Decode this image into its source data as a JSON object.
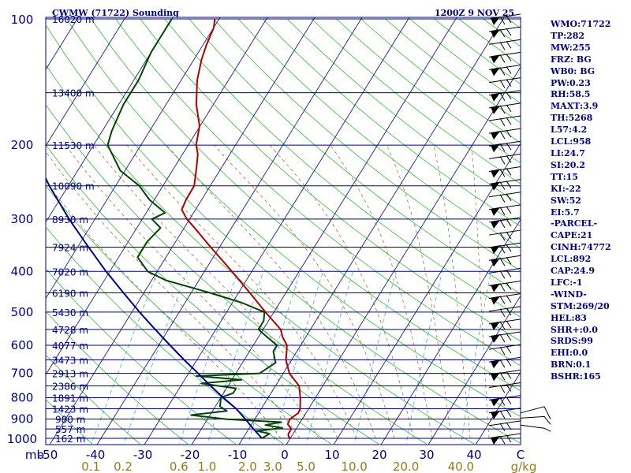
{
  "header": {
    "station": "CWMW (71722) Sounding",
    "time": "1200Z  9 NOV 25"
  },
  "indices": [
    "WMO:71722",
    "TP:282",
    "MW:255",
    "FRZ: BG",
    "WB0: BG",
    "PW:0.23",
    "RH:58.5",
    "MAXT:3.9",
    "TH:5268",
    "L57:4.2",
    "LCL:958",
    "LI:24.7",
    "SI:20.2",
    "TT:15",
    "KI:-22",
    "SW:52",
    "EI:5.7",
    "-PARCEL-",
    "CAPE:21",
    "CINH:74772",
    "LCL:892",
    "CAP:24.9",
    "LFC:-1",
    "-WIND-",
    "STM:269/20",
    "HEL:83",
    "SHR+:0.0",
    "SRDS:99",
    "EHI:0.0",
    "BRN:0.1",
    "BSHR:165"
  ],
  "chart_data": {
    "type": "line",
    "chart_kind": "skew-T log-P sounding",
    "pressure_ticks": [
      "100",
      "200",
      "300",
      "400",
      "500",
      "600",
      "700",
      "800",
      "900",
      "1000"
    ],
    "pressure_values": [
      100,
      200,
      300,
      400,
      500,
      600,
      700,
      800,
      900,
      1000
    ],
    "temperature_ticks": [
      "-50",
      "-40",
      "-30",
      "-20",
      "-10",
      "0",
      "10",
      "20",
      "30",
      "40"
    ],
    "temperature_values": [
      -50,
      -40,
      -30,
      -20,
      -10,
      0,
      10,
      20,
      30,
      40
    ],
    "temperature_unit": "C",
    "axis_corner_label": "mb",
    "mixing_ratio_ticks": [
      "0.1",
      "0.2",
      "0.6",
      "1.0",
      "2.0",
      "3.0",
      "5.0",
      "10.0",
      "20.0",
      "40.0"
    ],
    "mixing_ratio_unit": "g/kg",
    "height_labels": [
      {
        "p": 100,
        "label": "16020 m"
      },
      {
        "p": 150,
        "label": "13400 m"
      },
      {
        "p": 200,
        "label": "11530 m"
      },
      {
        "p": 250,
        "label": "10090 m"
      },
      {
        "p": 300,
        "label": "8930 m"
      },
      {
        "p": 350,
        "label": "7924 m"
      },
      {
        "p": 400,
        "label": "7020 m"
      },
      {
        "p": 450,
        "label": "6190 m"
      },
      {
        "p": 500,
        "label": "5430 m"
      },
      {
        "p": 550,
        "label": "4728 m"
      },
      {
        "p": 600,
        "label": "4077 m"
      },
      {
        "p": 650,
        "label": "3473 m"
      },
      {
        "p": 700,
        "label": "2913 m"
      },
      {
        "p": 750,
        "label": "2386 m"
      },
      {
        "p": 800,
        "label": "1891 m"
      },
      {
        "p": 850,
        "label": "1423 m"
      },
      {
        "p": 900,
        "label": "980 m"
      },
      {
        "p": 950,
        "label": "557 m"
      },
      {
        "p": 1000,
        "label": "162 m"
      }
    ],
    "p_range": [
      100,
      1050
    ],
    "t_range_at_bottom": [
      -50,
      50
    ],
    "series": [
      {
        "name": "",
        "color": "#b00000",
        "points": [
          [
            1000,
            0.0
          ],
          [
            990,
            -0.6
          ],
          [
            975,
            -1.0
          ],
          [
            950,
            -1.0
          ],
          [
            925,
            -2.4
          ],
          [
            900,
            -2.6
          ],
          [
            870,
            -1.6
          ],
          [
            850,
            -1.8
          ],
          [
            800,
            -3.2
          ],
          [
            750,
            -5.0
          ],
          [
            700,
            -8.7
          ],
          [
            650,
            -11.2
          ],
          [
            625,
            -12.0
          ],
          [
            600,
            -12.9
          ],
          [
            575,
            -14.8
          ],
          [
            550,
            -16.3
          ],
          [
            500,
            -21.8
          ],
          [
            450,
            -27.6
          ],
          [
            400,
            -34.2
          ],
          [
            350,
            -41.9
          ],
          [
            320,
            -46.9
          ],
          [
            300,
            -50.6
          ],
          [
            285,
            -52.9
          ],
          [
            270,
            -53.3
          ],
          [
            250,
            -53.4
          ],
          [
            225,
            -55.4
          ],
          [
            210,
            -56.8
          ],
          [
            200,
            -58.3
          ],
          [
            180,
            -60.1
          ],
          [
            160,
            -63.6
          ],
          [
            140,
            -66.6
          ],
          [
            125,
            -68.4
          ],
          [
            115,
            -69.3
          ],
          [
            105,
            -70.0
          ],
          [
            100,
            -70.9
          ]
        ]
      },
      {
        "name": "",
        "color": "#004400",
        "points": [
          [
            1000,
            -6.0
          ],
          [
            975,
            -5.0
          ],
          [
            960,
            -8.0
          ],
          [
            945,
            -3.0
          ],
          [
            930,
            -7.0
          ],
          [
            915,
            -4.0
          ],
          [
            900,
            -16.0
          ],
          [
            880,
            -24.0
          ],
          [
            860,
            -17.0
          ],
          [
            840,
            -19.0
          ],
          [
            800,
            -20.0
          ],
          [
            780,
            -18.0
          ],
          [
            760,
            -18.0
          ],
          [
            740,
            -26.0
          ],
          [
            725,
            -18.0
          ],
          [
            710,
            -28.0
          ],
          [
            700,
            -15.0
          ],
          [
            680,
            -14.0
          ],
          [
            660,
            -13.0
          ],
          [
            640,
            -14.0
          ],
          [
            620,
            -15.0
          ],
          [
            600,
            -15.0
          ],
          [
            575,
            -18.0
          ],
          [
            550,
            -21.0
          ],
          [
            525,
            -21.0
          ],
          [
            500,
            -22.0
          ],
          [
            475,
            -28.0
          ],
          [
            450,
            -36.0
          ],
          [
            420,
            -47.0
          ],
          [
            400,
            -52.0
          ],
          [
            370,
            -56.0
          ],
          [
            340,
            -56.0
          ],
          [
            315,
            -55.0
          ],
          [
            300,
            -58.0
          ],
          [
            290,
            -56.0
          ],
          [
            270,
            -61.0
          ],
          [
            250,
            -65.0
          ],
          [
            230,
            -71.0
          ],
          [
            200,
            -77.0
          ],
          [
            185,
            -78.0
          ],
          [
            160,
            -79.0
          ],
          [
            140,
            -79.0
          ],
          [
            120,
            -80.0
          ],
          [
            100,
            -80.0
          ]
        ]
      },
      {
        "name": "",
        "color": "#00008b",
        "points": [
          [
            1000,
            -6.0
          ],
          [
            950,
            -9.0
          ],
          [
            900,
            -12.0
          ],
          [
            850,
            -15.3
          ],
          [
            800,
            -19.5
          ],
          [
            750,
            -23.7
          ],
          [
            700,
            -28.0
          ],
          [
            650,
            -32.7
          ],
          [
            600,
            -37.6
          ],
          [
            550,
            -42.8
          ],
          [
            500,
            -48.4
          ],
          [
            450,
            -54.3
          ],
          [
            400,
            -60.8
          ],
          [
            350,
            -67.7
          ],
          [
            300,
            -75.5
          ],
          [
            250,
            -84.0
          ],
          [
            200,
            -93.5
          ],
          [
            170,
            -99.0
          ],
          [
            140,
            -106.0
          ],
          [
            120,
            -110.0
          ]
        ]
      }
    ],
    "wind_barbs": {
      "direction": "west",
      "levels": 34
    }
  }
}
